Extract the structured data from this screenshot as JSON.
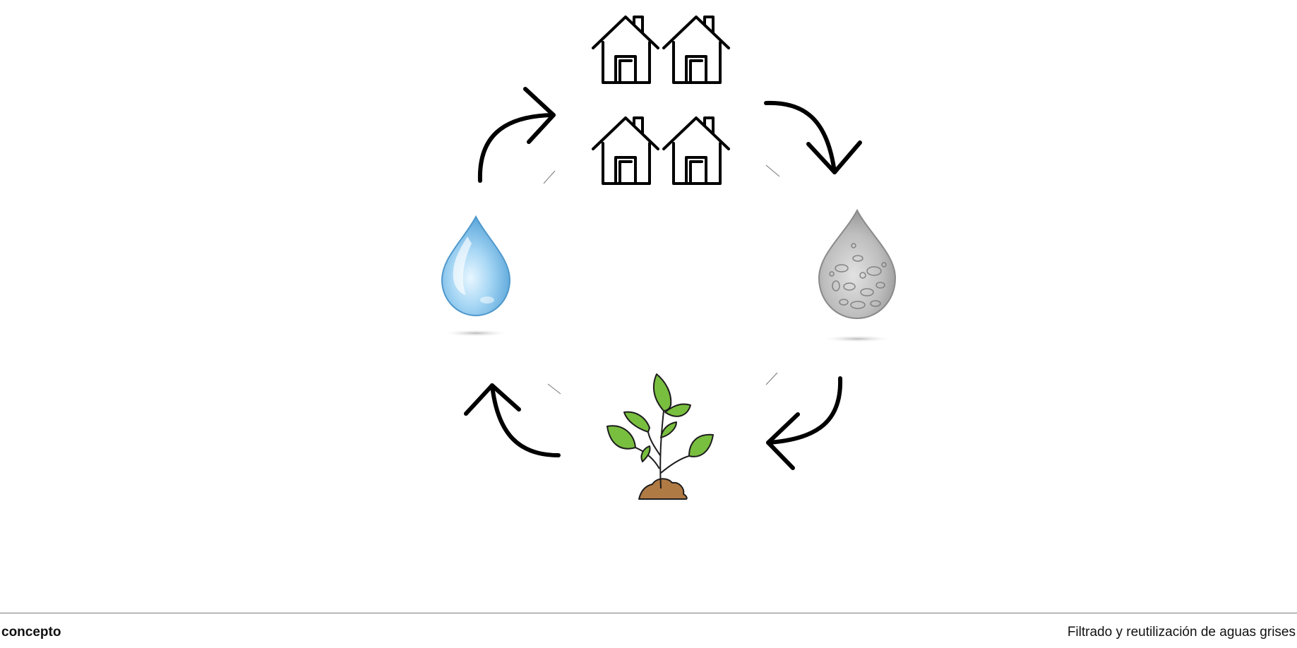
{
  "diagram": {
    "nodes": [
      {
        "name": "houses-group-icon",
        "icon": "houses-icon",
        "count": 4
      },
      {
        "name": "grey-water-drop-icon",
        "icon": "grey-water-drop-icon"
      },
      {
        "name": "plant-icon",
        "icon": "sprout-icon"
      },
      {
        "name": "clean-water-drop-icon",
        "icon": "clean-water-drop-icon"
      }
    ],
    "flow": "clockwise",
    "colors": {
      "stroke": "#000000",
      "clean_water": "#7cc0ea",
      "grey_water": "#9e9e9e",
      "leaf": "#79bf3f",
      "soil": "#b07a45"
    }
  },
  "footer": {
    "left_label": "concepto",
    "right_label": "Filtrado y reutilización de aguas grises"
  }
}
